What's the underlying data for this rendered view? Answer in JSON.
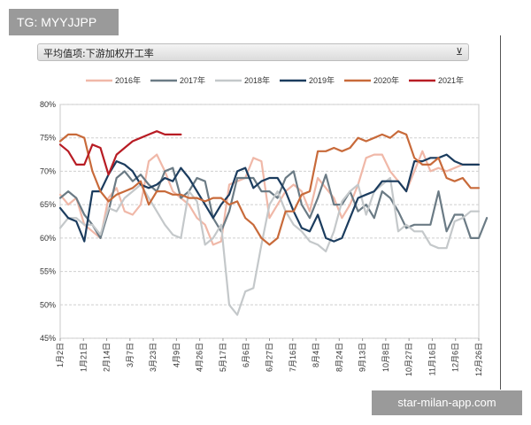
{
  "header": {
    "tg_label": "TG: MYYJJPP",
    "panel_title": "平均值项:下游加权开工率",
    "filter_icon": "filter-icon"
  },
  "watermark": "star-milan-app.com",
  "chart_data": {
    "type": "line",
    "ylim": [
      45,
      80
    ],
    "y_ticks": [
      "45%",
      "50%",
      "55%",
      "60%",
      "65%",
      "70%",
      "75%",
      "80%"
    ],
    "y_tick_values": [
      45,
      50,
      55,
      60,
      65,
      70,
      75,
      80
    ],
    "x_ticks": [
      "1月2日",
      "1月21日",
      "2月14日",
      "3月7日",
      "3月23日",
      "4月9日",
      "4月26日",
      "5月17日",
      "6月6日",
      "6月27日",
      "7月16日",
      "8月4日",
      "8月24日",
      "9月13日",
      "10月8日",
      "10月27日",
      "11月16日",
      "12月6日",
      "12月26日"
    ],
    "x_max": 52,
    "grid": true,
    "legend_position": "top",
    "series": [
      {
        "name": "2016年",
        "color": "#f0b8a8",
        "values": [
          66.5,
          65,
          66,
          62,
          61,
          60,
          66,
          67.5,
          64,
          63.5,
          65,
          71.5,
          72.5,
          70,
          67,
          66,
          65,
          63,
          62,
          59,
          59.5,
          68,
          68.5,
          69,
          72,
          71.5,
          63,
          65,
          67,
          68,
          67,
          64,
          69,
          67.5,
          66,
          63,
          65,
          68,
          72,
          72.5,
          72.5,
          70,
          68.5,
          67,
          70,
          73,
          70,
          70.5,
          70,
          70.5,
          71,
          71,
          71
        ]
      },
      {
        "name": "2017年",
        "color": "#6b7b85",
        "values": [
          66,
          67,
          66,
          63.5,
          62,
          60,
          64,
          69,
          70,
          68.5,
          69.5,
          68,
          67,
          70,
          70.5,
          66,
          67,
          69,
          68.5,
          63,
          61,
          64,
          69,
          69,
          69,
          67,
          67,
          66,
          69,
          70,
          65,
          63,
          66,
          69.5,
          65,
          65,
          67,
          64,
          65,
          63,
          67,
          66,
          64,
          61.5,
          62,
          62,
          62,
          67,
          61,
          63.5,
          63.5,
          60,
          60,
          63
        ]
      },
      {
        "name": "2018年",
        "color": "#c4c8ca",
        "values": [
          61.5,
          63,
          63,
          62,
          62,
          60.5,
          64.5,
          64,
          66,
          67,
          68,
          66,
          64,
          62,
          60.5,
          60,
          67,
          65.5,
          59,
          60,
          62,
          50,
          48.5,
          52,
          52.5,
          59,
          65,
          67,
          64,
          62,
          61,
          59.5,
          59,
          58,
          61,
          65.5,
          67,
          68,
          63.5,
          67,
          68,
          69,
          61,
          62,
          61,
          61,
          59,
          58.5,
          58.5,
          62.5,
          63,
          64,
          64
        ]
      },
      {
        "name": "2019年",
        "color": "#1b3c5e",
        "values": [
          64.5,
          63,
          62.5,
          59.5,
          67,
          67,
          69.5,
          71.5,
          71,
          70,
          68,
          67.5,
          68,
          69,
          68.5,
          70.5,
          69,
          67,
          65,
          63,
          65,
          66.5,
          70,
          70.5,
          67.5,
          68.5,
          69,
          69,
          67,
          64,
          61.5,
          61,
          63.5,
          60,
          59.5,
          60,
          63,
          66,
          66.5,
          67,
          68.5,
          68.5,
          68.5,
          67,
          71.5,
          71.5,
          72,
          72,
          72.5,
          71.5,
          71,
          71,
          71
        ]
      },
      {
        "name": "2020年",
        "color": "#c86a3a",
        "values": [
          74.5,
          75.5,
          75.5,
          75,
          70,
          67,
          65.5,
          66.5,
          67,
          67.5,
          68.5,
          65,
          67,
          67,
          66.5,
          66.5,
          66,
          66,
          65.5,
          66,
          66,
          65,
          65.5,
          63,
          62,
          60,
          59,
          60,
          64,
          64,
          66.5,
          67,
          73,
          73,
          73.5,
          73,
          73.5,
          75,
          74.5,
          75,
          75.5,
          75,
          76,
          75.5,
          72,
          71,
          71,
          72,
          69,
          68.5,
          69,
          67.5,
          67.5
        ]
      },
      {
        "name": "2021年",
        "color": "#b81c24",
        "values": [
          74,
          73,
          71,
          71,
          74,
          73.5,
          69.5,
          72.5,
          73.5,
          74.5,
          75,
          75.5,
          76,
          75.5,
          75.5,
          75.5
        ]
      }
    ]
  }
}
